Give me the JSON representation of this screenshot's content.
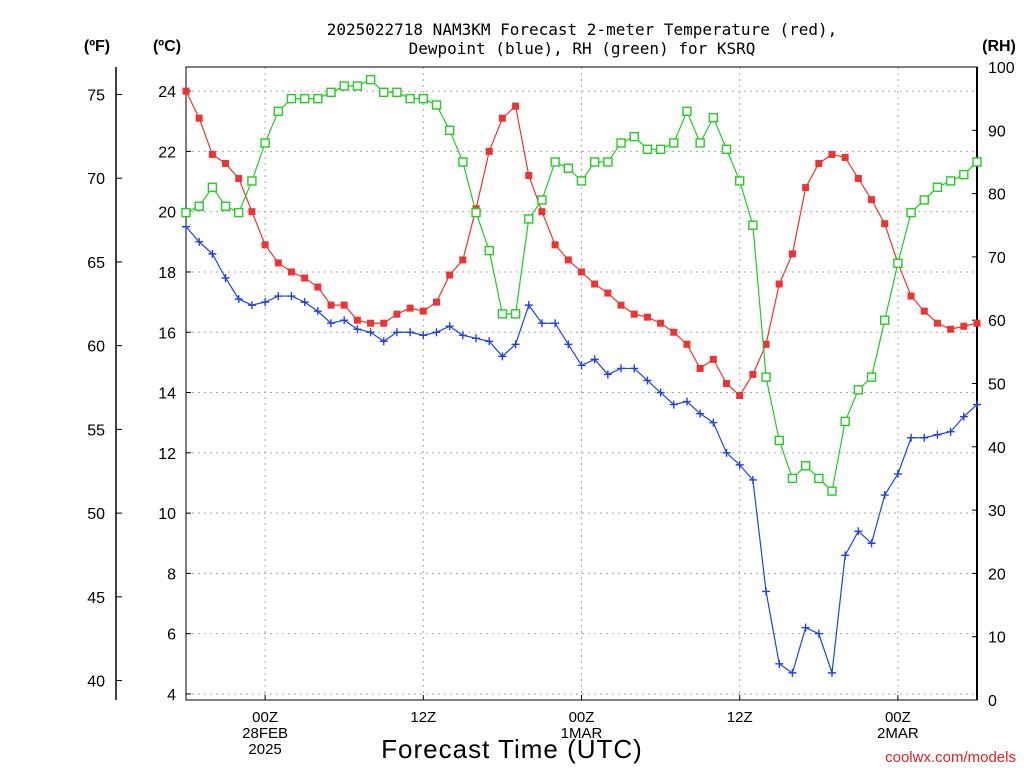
{
  "title_line1": "2025022718 NAM3KM Forecast 2-meter Temperature (red),",
  "title_line2": "Dewpoint (blue), RH (green) for KSRQ",
  "unit_f": "(ºF)",
  "unit_c": "(ºC)",
  "unit_rh": "(RH)",
  "xlabel": "Forecast Time (UTC)",
  "credit": "coolwx.com/models",
  "colors": {
    "temperature": "#ee3333",
    "dewpoint": "#2244dd",
    "rh": "#22cc22",
    "grid": "#aaaaaa",
    "credit": "#dd2222"
  },
  "chart_data": {
    "type": "line",
    "title": "2025022718 NAM3KM Forecast 2-meter Temperature (red), Dewpoint (blue), RH (green) for KSRQ",
    "xlabel": "Forecast Time (UTC)",
    "x_hours": [
      0,
      1,
      2,
      3,
      4,
      5,
      6,
      7,
      8,
      9,
      10,
      11,
      12,
      13,
      14,
      15,
      16,
      17,
      18,
      19,
      20,
      21,
      22,
      23,
      24,
      25,
      26,
      27,
      28,
      29,
      30,
      31,
      32,
      33,
      34,
      35,
      36,
      37,
      38,
      39,
      40,
      41,
      42,
      43,
      44,
      45,
      46,
      47,
      48,
      49,
      50,
      51,
      52,
      53,
      54,
      55,
      56,
      57,
      58,
      59,
      60
    ],
    "xlim": [
      0,
      60
    ],
    "x_ticks": [
      {
        "hour": 6,
        "lines": [
          "00Z",
          "28FEB",
          "2025"
        ]
      },
      {
        "hour": 18,
        "lines": [
          "12Z"
        ]
      },
      {
        "hour": 30,
        "lines": [
          "00Z",
          "1MAR"
        ]
      },
      {
        "hour": 42,
        "lines": [
          "12Z"
        ]
      },
      {
        "hour": 54,
        "lines": [
          "00Z",
          "2MAR"
        ]
      }
    ],
    "yaxis_c": {
      "lim": [
        3.8,
        24.8
      ],
      "ticks": [
        4,
        6,
        8,
        10,
        12,
        14,
        16,
        18,
        20,
        22,
        24
      ]
    },
    "yaxis_f": {
      "ticks": [
        40,
        45,
        50,
        55,
        60,
        65,
        70,
        75
      ]
    },
    "yaxis_rh": {
      "lim": [
        0,
        100
      ],
      "ticks": [
        0,
        10,
        20,
        30,
        40,
        50,
        60,
        70,
        80,
        90,
        100
      ]
    },
    "grid": true,
    "series": [
      {
        "name": "Temperature",
        "units": "C",
        "color": "#ee3333",
        "marker": "filled-square",
        "values": [
          24.0,
          23.1,
          21.9,
          21.6,
          21.1,
          20.0,
          18.9,
          18.3,
          18.0,
          17.8,
          17.5,
          16.9,
          16.9,
          16.4,
          16.3,
          16.3,
          16.6,
          16.8,
          16.7,
          17.0,
          17.9,
          18.4,
          20.1,
          22.0,
          23.1,
          23.5,
          21.2,
          20.0,
          18.9,
          18.4,
          18.0,
          17.6,
          17.3,
          16.9,
          16.6,
          16.5,
          16.3,
          16.0,
          15.6,
          14.8,
          15.1,
          14.3,
          13.9,
          14.6,
          15.6,
          17.6,
          18.6,
          20.8,
          21.6,
          21.9,
          21.8,
          21.1,
          20.4,
          19.6,
          18.3,
          17.2,
          16.7,
          16.3,
          16.1,
          16.2,
          16.3
        ]
      },
      {
        "name": "Dewpoint",
        "units": "C",
        "color": "#2244dd",
        "marker": "plus",
        "values": [
          19.5,
          19.0,
          18.6,
          17.8,
          17.1,
          16.9,
          17.0,
          17.2,
          17.2,
          17.0,
          16.7,
          16.3,
          16.4,
          16.1,
          16.0,
          15.7,
          16.0,
          16.0,
          15.9,
          16.0,
          16.2,
          15.9,
          15.8,
          15.7,
          15.2,
          15.6,
          16.9,
          16.3,
          16.3,
          15.6,
          14.9,
          15.1,
          14.6,
          14.8,
          14.8,
          14.4,
          14.0,
          13.6,
          13.7,
          13.3,
          13.0,
          12.0,
          11.6,
          11.1,
          7.4,
          5.0,
          4.7,
          6.2,
          6.0,
          4.7,
          8.6,
          9.4,
          9.0,
          10.6,
          11.3,
          12.5,
          12.5,
          12.6,
          12.7,
          13.2,
          13.6
        ]
      },
      {
        "name": "RH",
        "units": "%",
        "color": "#22cc22",
        "marker": "open-square",
        "values": [
          77,
          78,
          81,
          78,
          77,
          82,
          88,
          93,
          95,
          95,
          95,
          96,
          97,
          97,
          98,
          96,
          96,
          95,
          95,
          94,
          90,
          85,
          77,
          71,
          61,
          61,
          76,
          79,
          85,
          84,
          82,
          85,
          85,
          88,
          89,
          87,
          87,
          88,
          93,
          88,
          92,
          87,
          82,
          75,
          51,
          41,
          35,
          37,
          35,
          33,
          44,
          49,
          51,
          60,
          69,
          77,
          79,
          81,
          82,
          83,
          85
        ]
      }
    ]
  }
}
